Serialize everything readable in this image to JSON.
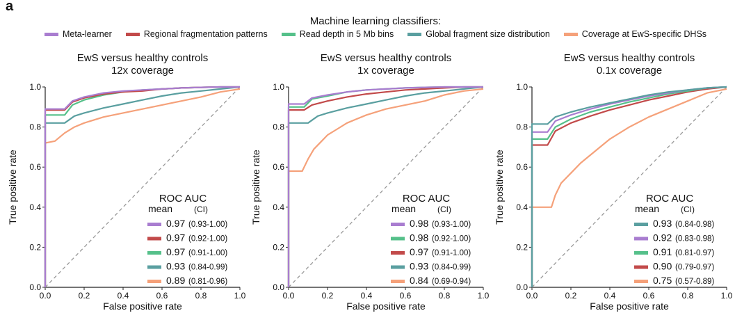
{
  "figure": {
    "panel_label": "a",
    "legend_title": "Machine learning classifiers:",
    "legend": [
      {
        "name": "Meta-learner",
        "color": "#a97dd0"
      },
      {
        "name": "Regional fragmentation patterns",
        "color": "#c24a4a"
      },
      {
        "name": "Read depth in 5 Mb bins",
        "color": "#55c08a"
      },
      {
        "name": "Global fragment size distribution",
        "color": "#5a9fa0"
      },
      {
        "name": "Coverage at EwS-specific DHSs",
        "color": "#f5a17a"
      }
    ]
  },
  "chart_data": [
    {
      "type": "line",
      "title": "EwS versus healthy controls",
      "subtitle": "12x coverage",
      "xlabel": "False positive rate",
      "ylabel": "True positive rate",
      "xlim": [
        0,
        1
      ],
      "ylim": [
        0,
        1
      ],
      "ticks": [
        "0.0",
        "0.2",
        "0.4",
        "0.6",
        "0.8",
        "1.0"
      ],
      "auc_header": "ROC AUC",
      "auc_mean": "mean",
      "auc_ci": "(CI)",
      "diagonal": true,
      "series": [
        {
          "name": "Meta-learner",
          "color": "#a97dd0",
          "auc": "0.97",
          "ci": "(0.93-1.00)",
          "x": [
            0,
            0,
            0.1,
            0.14,
            0.2,
            0.3,
            0.4,
            0.5,
            0.6,
            0.7,
            0.8,
            0.9,
            1.0
          ],
          "y": [
            0,
            0.89,
            0.89,
            0.93,
            0.95,
            0.97,
            0.98,
            0.985,
            0.99,
            0.995,
            0.998,
            1.0,
            1.0
          ]
        },
        {
          "name": "Regional fragmentation patterns",
          "color": "#c24a4a",
          "auc": "0.97",
          "ci": "(0.92-1.00)",
          "x": [
            0,
            0,
            0.1,
            0.14,
            0.2,
            0.3,
            0.4,
            0.5,
            0.6,
            0.7,
            0.8,
            0.9,
            1.0
          ],
          "y": [
            0,
            0.885,
            0.885,
            0.925,
            0.945,
            0.965,
            0.975,
            0.98,
            0.99,
            0.995,
            0.998,
            1.0,
            1.0
          ]
        },
        {
          "name": "Read depth in 5 Mb bins",
          "color": "#55c08a",
          "auc": "0.97",
          "ci": "(0.91-1.00)",
          "x": [
            0,
            0,
            0.1,
            0.14,
            0.2,
            0.3,
            0.4,
            0.5,
            0.6,
            0.7,
            0.8,
            0.9,
            1.0
          ],
          "y": [
            0,
            0.86,
            0.86,
            0.91,
            0.935,
            0.96,
            0.975,
            0.985,
            0.99,
            0.995,
            0.998,
            1.0,
            1.0
          ]
        },
        {
          "name": "Global fragment size distribution",
          "color": "#5a9fa0",
          "auc": "0.93",
          "ci": "(0.84-0.99)",
          "x": [
            0,
            0,
            0.1,
            0.15,
            0.2,
            0.3,
            0.4,
            0.5,
            0.6,
            0.7,
            0.8,
            0.9,
            1.0
          ],
          "y": [
            0,
            0.82,
            0.82,
            0.855,
            0.87,
            0.895,
            0.915,
            0.935,
            0.955,
            0.97,
            0.98,
            0.99,
            1.0
          ]
        },
        {
          "name": "Coverage at EwS-specific DHSs",
          "color": "#f5a17a",
          "auc": "0.89",
          "ci": "(0.81-0.96)",
          "x": [
            0,
            0,
            0.05,
            0.1,
            0.15,
            0.2,
            0.3,
            0.4,
            0.5,
            0.6,
            0.7,
            0.8,
            0.9,
            1.0
          ],
          "y": [
            0,
            0.72,
            0.73,
            0.77,
            0.8,
            0.82,
            0.85,
            0.87,
            0.89,
            0.91,
            0.93,
            0.95,
            0.975,
            0.99
          ]
        }
      ]
    },
    {
      "type": "line",
      "title": "EwS versus healthy controls",
      "subtitle": "1x coverage",
      "xlabel": "False positive rate",
      "ylabel": "True positive rate",
      "xlim": [
        0,
        1
      ],
      "ylim": [
        0,
        1
      ],
      "ticks": [
        "0.0",
        "0.2",
        "0.4",
        "0.6",
        "0.8",
        "1.0"
      ],
      "auc_header": "ROC AUC",
      "auc_mean": "mean",
      "auc_ci": "(CI)",
      "diagonal": true,
      "series": [
        {
          "name": "Meta-learner",
          "color": "#a97dd0",
          "auc": "0.98",
          "ci": "(0.93-1.00)",
          "x": [
            0,
            0,
            0.08,
            0.12,
            0.2,
            0.3,
            0.4,
            0.5,
            0.6,
            0.7,
            0.8,
            0.9,
            1.0
          ],
          "y": [
            0,
            0.915,
            0.915,
            0.945,
            0.96,
            0.975,
            0.985,
            0.99,
            0.995,
            0.998,
            1.0,
            1.0,
            1.0
          ]
        },
        {
          "name": "Read depth in 5 Mb bins",
          "color": "#55c08a",
          "auc": "0.98",
          "ci": "(0.92-1.00)",
          "x": [
            0,
            0,
            0.08,
            0.12,
            0.2,
            0.3,
            0.4,
            0.5,
            0.6,
            0.7,
            0.8,
            0.9,
            1.0
          ],
          "y": [
            0,
            0.9,
            0.9,
            0.94,
            0.955,
            0.975,
            0.985,
            0.99,
            0.995,
            0.998,
            1.0,
            1.0,
            1.0
          ]
        },
        {
          "name": "Regional fragmentation patterns",
          "color": "#c24a4a",
          "auc": "0.97",
          "ci": "(0.91-1.00)",
          "x": [
            0,
            0,
            0.08,
            0.12,
            0.2,
            0.3,
            0.4,
            0.5,
            0.6,
            0.7,
            0.8,
            0.9,
            1.0
          ],
          "y": [
            0,
            0.885,
            0.885,
            0.91,
            0.93,
            0.95,
            0.965,
            0.975,
            0.985,
            0.99,
            0.995,
            1.0,
            1.0
          ]
        },
        {
          "name": "Global fragment size distribution",
          "color": "#5a9fa0",
          "auc": "0.93",
          "ci": "(0.84-0.99)",
          "x": [
            0,
            0,
            0.1,
            0.15,
            0.2,
            0.3,
            0.4,
            0.5,
            0.6,
            0.7,
            0.8,
            0.9,
            1.0
          ],
          "y": [
            0,
            0.82,
            0.82,
            0.855,
            0.87,
            0.895,
            0.915,
            0.935,
            0.955,
            0.97,
            0.98,
            0.99,
            1.0
          ]
        },
        {
          "name": "Coverage at EwS-specific DHSs",
          "color": "#f5a17a",
          "auc": "0.84",
          "ci": "(0.69-0.94)",
          "x": [
            0,
            0,
            0.07,
            0.1,
            0.13,
            0.17,
            0.2,
            0.25,
            0.3,
            0.4,
            0.5,
            0.6,
            0.7,
            0.8,
            0.9,
            1.0
          ],
          "y": [
            0,
            0.58,
            0.58,
            0.64,
            0.69,
            0.73,
            0.76,
            0.79,
            0.82,
            0.86,
            0.89,
            0.91,
            0.93,
            0.96,
            0.98,
            0.99
          ]
        }
      ]
    },
    {
      "type": "line",
      "title": "EwS versus healthy controls",
      "subtitle": "0.1x coverage",
      "xlabel": "False positive rate",
      "ylabel": "True positive rate",
      "xlim": [
        0,
        1
      ],
      "ylim": [
        0,
        1
      ],
      "ticks": [
        "0.0",
        "0.2",
        "0.4",
        "0.6",
        "0.8",
        "1.0"
      ],
      "auc_header": "ROC AUC",
      "auc_mean": "mean",
      "auc_ci": "(CI)",
      "diagonal": true,
      "series": [
        {
          "name": "Global fragment size distribution",
          "color": "#5a9fa0",
          "auc": "0.93",
          "ci": "(0.84-0.98)",
          "x": [
            0,
            0,
            0.08,
            0.12,
            0.2,
            0.3,
            0.4,
            0.5,
            0.6,
            0.7,
            0.8,
            0.9,
            1.0
          ],
          "y": [
            0,
            0.815,
            0.815,
            0.85,
            0.875,
            0.9,
            0.92,
            0.94,
            0.96,
            0.975,
            0.985,
            0.995,
            1.0
          ]
        },
        {
          "name": "Meta-learner",
          "color": "#a97dd0",
          "auc": "0.92",
          "ci": "(0.83-0.98)",
          "x": [
            0,
            0,
            0.08,
            0.12,
            0.2,
            0.3,
            0.4,
            0.5,
            0.6,
            0.7,
            0.8,
            0.9,
            1.0
          ],
          "y": [
            0,
            0.775,
            0.775,
            0.83,
            0.86,
            0.89,
            0.915,
            0.935,
            0.955,
            0.97,
            0.985,
            0.995,
            1.0
          ]
        },
        {
          "name": "Read depth in 5 Mb bins",
          "color": "#55c08a",
          "auc": "0.91",
          "ci": "(0.81-0.97)",
          "x": [
            0,
            0,
            0.08,
            0.12,
            0.2,
            0.3,
            0.4,
            0.5,
            0.6,
            0.7,
            0.8,
            0.9,
            1.0
          ],
          "y": [
            0,
            0.74,
            0.74,
            0.8,
            0.84,
            0.875,
            0.9,
            0.925,
            0.945,
            0.965,
            0.98,
            0.995,
            1.0
          ]
        },
        {
          "name": "Regional fragmentation patterns",
          "color": "#c24a4a",
          "auc": "0.90",
          "ci": "(0.79-0.97)",
          "x": [
            0,
            0,
            0.08,
            0.12,
            0.2,
            0.3,
            0.4,
            0.5,
            0.6,
            0.7,
            0.8,
            0.9,
            1.0
          ],
          "y": [
            0,
            0.71,
            0.71,
            0.78,
            0.82,
            0.855,
            0.885,
            0.91,
            0.935,
            0.955,
            0.975,
            0.99,
            1.0
          ]
        },
        {
          "name": "Coverage at EwS-specific DHSs",
          "color": "#f5a17a",
          "auc": "0.75",
          "ci": "(0.57-0.89)",
          "x": [
            0,
            0,
            0.1,
            0.12,
            0.15,
            0.2,
            0.25,
            0.3,
            0.35,
            0.4,
            0.5,
            0.6,
            0.7,
            0.8,
            0.9,
            1.0
          ],
          "y": [
            0,
            0.4,
            0.4,
            0.46,
            0.52,
            0.57,
            0.62,
            0.66,
            0.7,
            0.74,
            0.8,
            0.85,
            0.89,
            0.93,
            0.97,
            0.99
          ]
        }
      ]
    }
  ]
}
